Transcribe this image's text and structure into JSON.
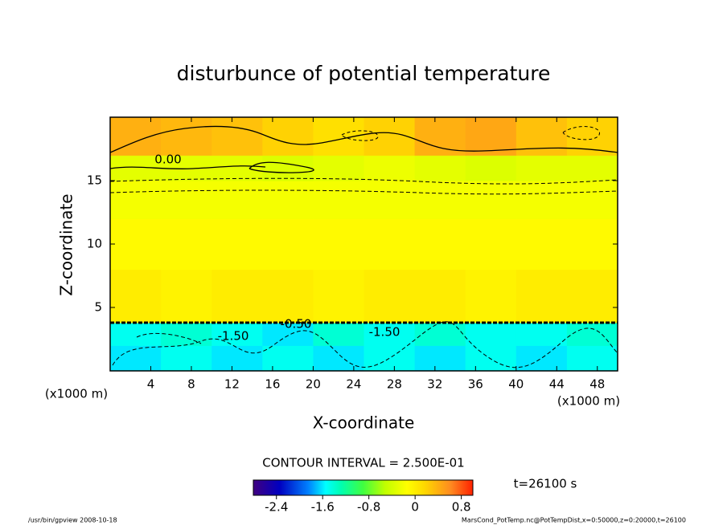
{
  "chart_data": {
    "type": "heatmap",
    "title": "disturbunce of potential temperature",
    "xlabel": "X-coordinate",
    "ylabel": "Z-coordinate",
    "x_unit_label": "(x1000 m)",
    "xbins": [
      0,
      5,
      10,
      15,
      20,
      25,
      30,
      35,
      40,
      45,
      50
    ],
    "ybins": [
      0,
      2,
      3.8,
      8,
      12,
      15,
      17,
      20
    ],
    "values": [
      [
        -1.6,
        -1.5,
        -1.6,
        -1.5,
        -1.6,
        -1.5,
        -1.6,
        -1.5,
        -1.6,
        -1.5
      ],
      [
        -1.5,
        -1.4,
        -1.5,
        -1.6,
        -1.4,
        -1.5,
        -1.4,
        -1.5,
        -1.5,
        -1.4
      ],
      [
        0,
        -0.05,
        0,
        0,
        -0.05,
        0,
        0,
        -0.05,
        0,
        0
      ],
      [
        -0.1,
        -0.1,
        -0.1,
        -0.1,
        -0.1,
        -0.1,
        -0.1,
        -0.1,
        -0.1,
        -0.1
      ],
      [
        -0.2,
        -0.2,
        -0.2,
        -0.2,
        -0.2,
        -0.2,
        -0.2,
        -0.2,
        -0.2,
        -0.2
      ],
      [
        -0.3,
        -0.3,
        -0.3,
        -0.35,
        -0.3,
        -0.25,
        -0.3,
        -0.35,
        -0.3,
        -0.3
      ],
      [
        0.4,
        0.35,
        0.3,
        0.2,
        0.1,
        0.2,
        0.4,
        0.45,
        0.3,
        0.2
      ]
    ],
    "xlim": [
      0,
      50
    ],
    "ylim": [
      0,
      20
    ],
    "xticks": [
      4,
      8,
      12,
      16,
      20,
      24,
      28,
      32,
      36,
      40,
      44,
      48
    ],
    "yticks": [
      5,
      10,
      15
    ],
    "clim": [
      -2.8,
      1.0
    ],
    "cticks": [
      -2.4,
      -1.6,
      -0.8,
      0,
      0.8
    ],
    "contour_labels": [
      "0.00",
      "-0.50",
      "-1.50",
      "-1.50"
    ],
    "contour_interval_text": "CONTOUR INTERVAL = 2.500E-01",
    "time_text": "t=26100 s",
    "footer_left": "/usr/bin/gpview   2008-10-18",
    "footer_right": "MarsCond_PotTemp.nc@PotTempDist,x=0:50000,z=0:20000,t=26100"
  }
}
